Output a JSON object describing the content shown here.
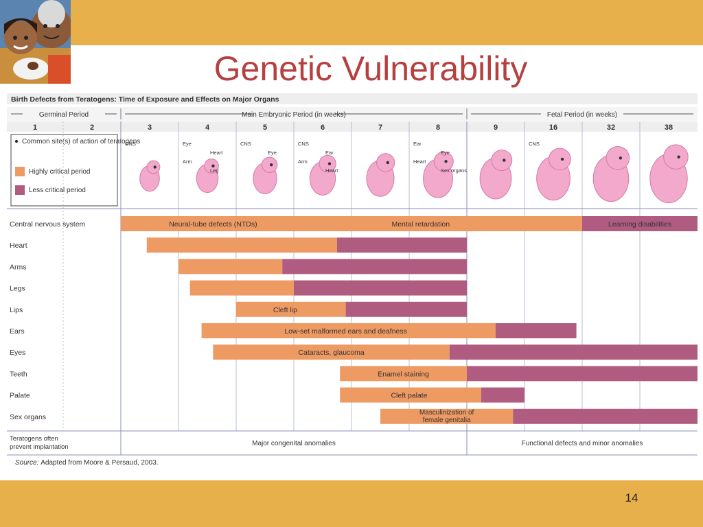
{
  "slide": {
    "title": "Genetic Vulnerability",
    "page_number": "14"
  },
  "colors": {
    "banner": "#e8b04a",
    "title": "#b5403f",
    "highly_critical": "#ee9a63",
    "less_critical": "#b05c80",
    "embryo": "#f2a9cc"
  },
  "chart_data": {
    "type": "bar",
    "title": "Birth Defects from Teratogens: Time of Exposure and Effects on Major Organs",
    "periods": [
      {
        "label": "Germinal Period",
        "start_week": 1,
        "end_week": 2
      },
      {
        "label": "Main Embryonic Period (in weeks)",
        "start_week": 3,
        "end_week": 8
      },
      {
        "label": "Fetal Period (in weeks)",
        "start_week": 9,
        "end_week": 38
      }
    ],
    "weeks": [
      "1",
      "2",
      "3",
      "4",
      "5",
      "6",
      "7",
      "8",
      "9",
      "16",
      "32",
      "38"
    ],
    "legend": {
      "site": "Common site(s) of action of teratogens",
      "highly": "Highly critical period",
      "less": "Less critical period"
    },
    "embryo_labels": [
      {
        "week": "3",
        "labels": [
          "CNS"
        ]
      },
      {
        "week": "4",
        "labels": [
          "Eye",
          "Heart",
          "Arm",
          "Leg"
        ]
      },
      {
        "week": "5",
        "labels": [
          "CNS",
          "Eye"
        ]
      },
      {
        "week": "6",
        "labels": [
          "CNS",
          "Ear",
          "Arm",
          "Heart"
        ]
      },
      {
        "week": "8",
        "labels": [
          "Ear",
          "Eye",
          "Heart",
          "Sex organs"
        ]
      },
      {
        "week": "16",
        "labels": [
          "CNS"
        ]
      }
    ],
    "organs": [
      {
        "name": "Central nervous system",
        "segments": [
          {
            "start": 2.0,
            "end": 10.0,
            "level": "highly",
            "labels": [
              {
                "text": "Neural-tube defects (NTDs)",
                "at": 3.6
              },
              {
                "text": "Mental retardation",
                "at": 7.2
              }
            ]
          },
          {
            "start": 10.0,
            "end": 12.0,
            "level": "less",
            "labels": [
              {
                "text": "Learning disabilities",
                "at": 11.0
              }
            ]
          }
        ]
      },
      {
        "name": "Heart",
        "segments": [
          {
            "start": 2.45,
            "end": 5.75,
            "level": "highly",
            "labels": []
          },
          {
            "start": 5.75,
            "end": 8.0,
            "level": "less",
            "labels": []
          }
        ]
      },
      {
        "name": "Arms",
        "segments": [
          {
            "start": 3.0,
            "end": 4.8,
            "level": "highly",
            "labels": []
          },
          {
            "start": 4.8,
            "end": 8.0,
            "level": "less",
            "labels": []
          }
        ]
      },
      {
        "name": "Legs",
        "segments": [
          {
            "start": 3.2,
            "end": 5.0,
            "level": "highly",
            "labels": []
          },
          {
            "start": 5.0,
            "end": 8.0,
            "level": "less",
            "labels": []
          }
        ]
      },
      {
        "name": "Lips",
        "segments": [
          {
            "start": 4.0,
            "end": 5.9,
            "level": "highly",
            "labels": [
              {
                "text": "Cleft lip",
                "at": 4.85
              }
            ]
          },
          {
            "start": 5.9,
            "end": 8.0,
            "level": "less",
            "labels": []
          }
        ]
      },
      {
        "name": "Ears",
        "segments": [
          {
            "start": 3.4,
            "end": 8.5,
            "level": "highly",
            "labels": [
              {
                "text": "Low-set malformed ears and deafness",
                "at": 5.9
              }
            ]
          },
          {
            "start": 8.5,
            "end": 9.9,
            "level": "less",
            "labels": []
          }
        ]
      },
      {
        "name": "Eyes",
        "segments": [
          {
            "start": 3.6,
            "end": 7.7,
            "level": "highly",
            "labels": [
              {
                "text": "Cataracts, glaucoma",
                "at": 5.65
              }
            ]
          },
          {
            "start": 7.7,
            "end": 12.0,
            "level": "less",
            "labels": []
          }
        ]
      },
      {
        "name": "Teeth",
        "segments": [
          {
            "start": 5.8,
            "end": 8.0,
            "level": "highly",
            "labels": [
              {
                "text": "Enamel staining",
                "at": 6.9
              }
            ]
          },
          {
            "start": 8.0,
            "end": 12.0,
            "level": "less",
            "labels": []
          }
        ]
      },
      {
        "name": "Palate",
        "segments": [
          {
            "start": 5.8,
            "end": 8.25,
            "level": "highly",
            "labels": [
              {
                "text": "Cleft palate",
                "at": 7.0
              }
            ]
          },
          {
            "start": 8.25,
            "end": 9.0,
            "level": "less",
            "labels": []
          }
        ]
      },
      {
        "name": "Sex organs",
        "segments": [
          {
            "start": 6.5,
            "end": 8.8,
            "level": "highly",
            "labels": [
              {
                "text": "Masculinization of",
                "at": 7.65
              },
              {
                "text": "female genitalia",
                "at": 7.65
              }
            ]
          },
          {
            "start": 8.8,
            "end": 12.0,
            "level": "less",
            "labels": []
          }
        ]
      }
    ],
    "footer": {
      "label": [
        "Teratogens often",
        "prevent implantation"
      ],
      "embryonic": "Major congenital anomalies",
      "fetal": "Functional defects and minor anomalies"
    },
    "source_label": "Source:",
    "source": "Adapted from Moore & Persaud, 2003."
  }
}
